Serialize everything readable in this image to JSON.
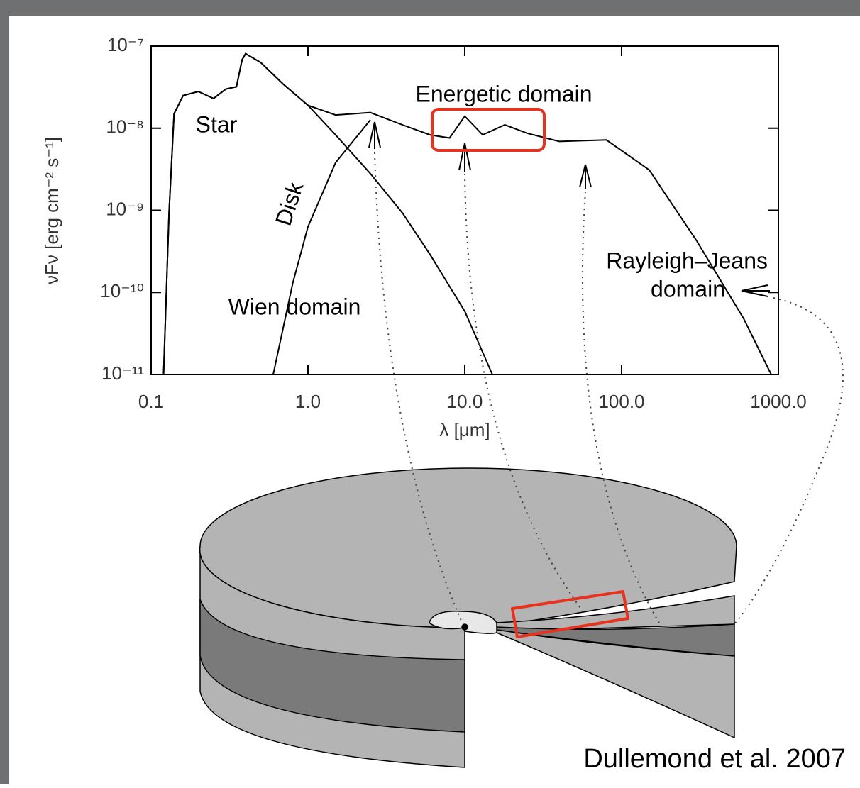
{
  "chart_data": {
    "type": "line",
    "x_label": "λ [μm]",
    "y_label": "νFν [erg cm⁻² s⁻¹]",
    "xscale": "log",
    "yscale": "log",
    "xlim": [
      0.1,
      1000
    ],
    "ylim": [
      1e-11,
      1e-07
    ],
    "xticks": [
      0.1,
      {
        "value": 1,
        "label": "1.0"
      },
      {
        "value": 10,
        "label": "10.0"
      },
      {
        "value": 100,
        "label": "100.0"
      },
      {
        "value": 1000,
        "label": "1000.0"
      }
    ],
    "yticks": [
      {
        "value": 1e-11,
        "label": "10⁻¹¹"
      },
      {
        "value": 1e-10,
        "label": "10⁻¹⁰"
      },
      {
        "value": 1e-09,
        "label": "10⁻⁹"
      },
      {
        "value": 1e-08,
        "label": "10⁻⁸"
      },
      {
        "value": 1e-07,
        "label": "10⁻⁷"
      }
    ],
    "grid": false,
    "series": [
      {
        "color": "#000000",
        "x": [
          0.12,
          0.13,
          0.14,
          0.16,
          0.2,
          0.25,
          0.3,
          0.35,
          0.38,
          0.4,
          0.5,
          0.7,
          1.0,
          1.5,
          2.5,
          4,
          6,
          8,
          10,
          13,
          18,
          25,
          40,
          80,
          150,
          300,
          600,
          900
        ],
        "values": [
          1e-11,
          9.3e-10,
          1.5e-08,
          2.5e-08,
          2.8e-08,
          2.3e-08,
          3e-08,
          3.2e-08,
          6.8e-08,
          8.1e-08,
          6.3e-08,
          3.4e-08,
          1.9e-08,
          1.45e-08,
          1.55e-08,
          1.1e-08,
          8.3e-09,
          7.6e-09,
          1.4e-08,
          8.3e-09,
          1.1e-08,
          8.7e-09,
          6.9e-09,
          7.2e-09,
          3.1e-09,
          4.3e-10,
          4.8e-11,
          1e-11
        ]
      },
      {
        "color": "#000000",
        "x": [
          0.12,
          0.13,
          0.14,
          0.16,
          0.2,
          0.25,
          0.3,
          0.35,
          0.38,
          0.4,
          0.5,
          0.7,
          1.0,
          1.5,
          2.5,
          4,
          6,
          10,
          15
        ],
        "values": [
          1e-11,
          9.3e-10,
          1.5e-08,
          2.5e-08,
          2.8e-08,
          2.3e-08,
          3e-08,
          3.2e-08,
          6.8e-08,
          8.1e-08,
          6.3e-08,
          3.4e-08,
          1.9e-08,
          8.3e-09,
          2.8e-09,
          9.3e-10,
          2.9e-10,
          5.9e-11,
          1e-11
        ]
      },
      {
        "color": "#000000",
        "x": [
          0.6,
          0.8,
          1.0,
          1.5,
          2.5
        ],
        "values": [
          1e-11,
          1.3e-10,
          6.3e-10,
          3.8e-09,
          1.26e-08
        ]
      }
    ],
    "annotations": [
      "Star",
      "Disk",
      "Wien domain",
      "Energetic domain",
      "Rayleigh–Jeans",
      "domain"
    ],
    "credit": "Dullemond et al. 2007"
  }
}
